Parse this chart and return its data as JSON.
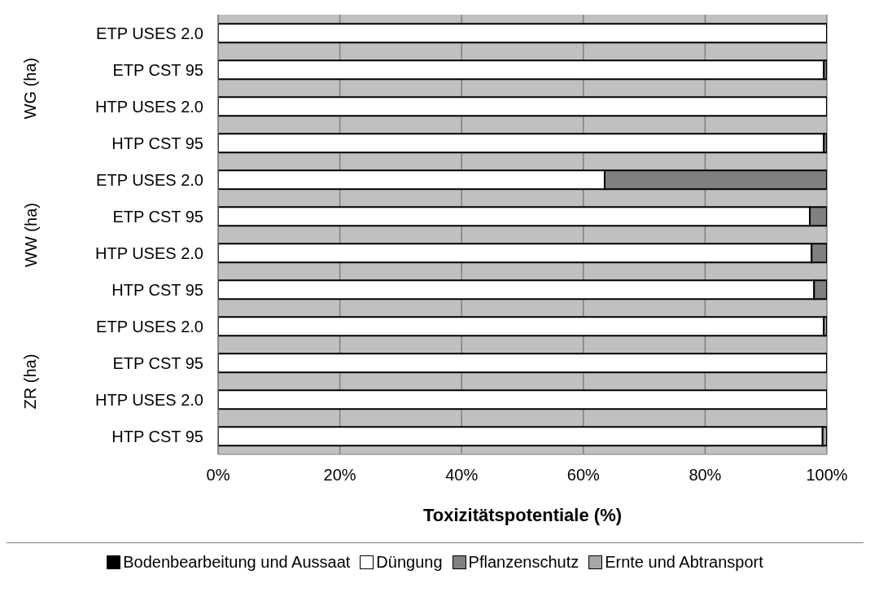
{
  "chart_data": {
    "type": "bar",
    "orientation": "horizontal",
    "stacked": true,
    "xlabel": "Toxizitätspotentiale (%)",
    "categories": [
      "ETP USES 2.0",
      "ETP CST 95",
      "HTP USES 2.0",
      "HTP CST 95",
      "ETP USES 2.0",
      "ETP CST 95",
      "HTP USES 2.0",
      "HTP CST 95",
      "ETP USES 2.0",
      "ETP CST 95",
      "HTP USES 2.0",
      "HTP CST 95"
    ],
    "annotations": [
      "WG (ha)",
      "WW (ha)",
      "ZR (ha)"
    ],
    "series": [
      {
        "name": "Bodenbearbeitung und Aussaat",
        "color": "#000000",
        "values": [
          0,
          0,
          0,
          0,
          0,
          0,
          0,
          0,
          0,
          0,
          0,
          0
        ]
      },
      {
        "name": "Düngung",
        "color": "#ffffff",
        "values": [
          100,
          99.5,
          100,
          99.5,
          63.5,
          97.2,
          97.5,
          97.9,
          99.5,
          100,
          100,
          99.3
        ]
      },
      {
        "name": "Pflanzenschutz",
        "color": "#808080",
        "values": [
          0,
          0.5,
          0,
          0.5,
          36.5,
          2.8,
          2.5,
          2.1,
          0,
          0,
          0,
          0
        ]
      },
      {
        "name": "Ernte und Abtransport",
        "color": "#a6a6a6",
        "values": [
          0,
          0,
          0,
          0,
          0,
          0,
          0,
          0,
          0.5,
          0,
          0,
          0.7
        ]
      }
    ],
    "xlim": [
      0,
      100
    ],
    "xticks": [
      {
        "value": 0,
        "label": "0%"
      },
      {
        "value": 20,
        "label": "20%"
      },
      {
        "value": 40,
        "label": "40%"
      },
      {
        "value": 60,
        "label": "60%"
      },
      {
        "value": 80,
        "label": "80%"
      },
      {
        "value": 100,
        "label": "100%"
      }
    ],
    "grid": "x",
    "legend": "bottom"
  }
}
